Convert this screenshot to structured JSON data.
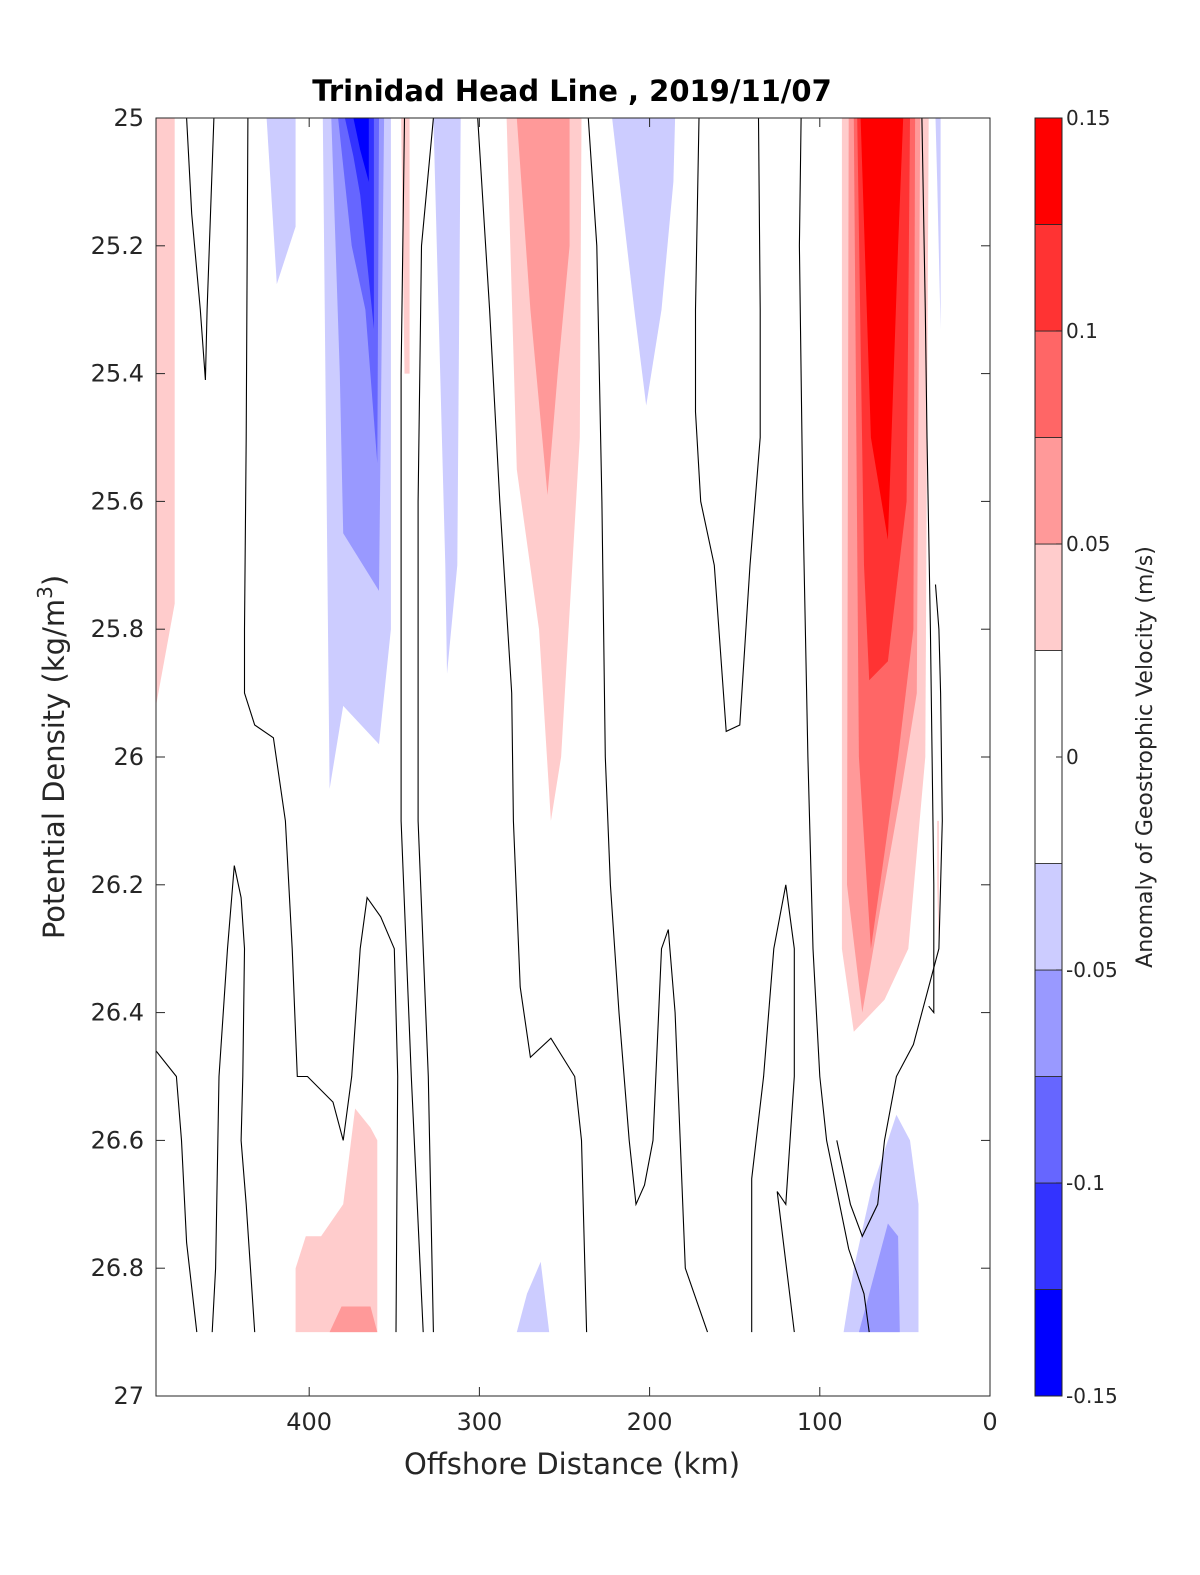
{
  "chart_data": {
    "type": "heatmap",
    "title": "Trinidad Head Line , 2019/11/07",
    "xlabel": "Offshore Distance (km)",
    "ylabel_main": "Potential Density (kg/m",
    "ylabel_sup": "3",
    "ylabel_close": ")",
    "xlim": [
      490,
      0
    ],
    "ylim": [
      25,
      27
    ],
    "y_reversed": true,
    "x_ticks": [
      400,
      300,
      200,
      100,
      0
    ],
    "x_tick_labels": [
      "400",
      "300",
      "200",
      "100",
      "0"
    ],
    "y_ticks": [
      25,
      25.2,
      25.4,
      25.6,
      25.8,
      26,
      26.2,
      26.4,
      26.6,
      26.8,
      27
    ],
    "y_tick_labels": [
      "25",
      "25.2",
      "25.4",
      "25.6",
      "25.8",
      "26",
      "26.2",
      "26.4",
      "26.6",
      "26.8",
      "27"
    ],
    "colorbar": {
      "label": "Anomaly of Geostrophic Velocity (m/s)",
      "limits": [
        -0.15,
        0.15
      ],
      "ticks": [
        0.15,
        0.1,
        0.05,
        0,
        -0.05,
        -0.1,
        -0.15
      ],
      "tick_labels": [
        "0.15",
        "0.1",
        "0.05",
        "0",
        "-0.05",
        "-0.1",
        "-0.15"
      ],
      "levels": [
        -0.15,
        -0.125,
        -0.1,
        -0.075,
        -0.05,
        -0.025,
        0.025,
        0.05,
        0.075,
        0.1,
        0.125,
        0.15
      ],
      "colors": [
        "#0000ff",
        "#3333ff",
        "#6666ff",
        "#9999ff",
        "#ccccff",
        "#ffffff",
        "#ffcccc",
        "#ff9999",
        "#ff6666",
        "#ff3333",
        "#ff0000"
      ]
    },
    "filled_regions": [
      {
        "color": "#ffcccc",
        "points": [
          [
            490,
            25
          ],
          [
            479,
            25
          ],
          [
            479,
            25.76
          ],
          [
            490,
            25.92
          ]
        ]
      },
      {
        "color": "#ccccff",
        "points": [
          [
            425,
            25
          ],
          [
            408,
            25
          ],
          [
            408,
            25.17
          ],
          [
            419,
            25.26
          ]
        ]
      },
      {
        "color": "#ccccff",
        "points": [
          [
            392,
            25
          ],
          [
            352,
            25
          ],
          [
            352,
            25.8
          ],
          [
            359,
            25.98
          ],
          [
            380,
            25.92
          ],
          [
            388,
            26.05
          ]
        ]
      },
      {
        "color": "#9999ff",
        "points": [
          [
            387,
            25
          ],
          [
            356,
            25
          ],
          [
            359,
            25.74
          ],
          [
            380,
            25.65
          ],
          [
            382,
            25.4
          ]
        ]
      },
      {
        "color": "#6666ff",
        "points": [
          [
            383,
            25
          ],
          [
            359,
            25
          ],
          [
            360,
            25.54
          ],
          [
            367,
            25.3
          ],
          [
            375,
            25.2
          ]
        ]
      },
      {
        "color": "#3333ff",
        "points": [
          [
            379,
            25
          ],
          [
            362,
            25
          ],
          [
            362,
            25.33
          ],
          [
            370,
            25.12
          ],
          [
            374,
            25.06
          ]
        ]
      },
      {
        "color": "#0000ff",
        "points": [
          [
            374,
            25
          ],
          [
            365,
            25
          ],
          [
            365,
            25.1
          ],
          [
            370,
            25.05
          ]
        ]
      },
      {
        "color": "#ffcccc",
        "points": [
          [
            346,
            25
          ],
          [
            341,
            25
          ],
          [
            341,
            25.4
          ],
          [
            344,
            25.4
          ]
        ]
      },
      {
        "color": "#ccccff",
        "points": [
          [
            327,
            25
          ],
          [
            311,
            25
          ],
          [
            313,
            25.7
          ],
          [
            319,
            25.87
          ],
          [
            320,
            25.7
          ]
        ]
      },
      {
        "color": "#ffcccc",
        "points": [
          [
            284,
            25
          ],
          [
            240,
            25
          ],
          [
            241,
            25.5
          ],
          [
            252,
            26.0
          ],
          [
            258,
            26.1
          ],
          [
            265,
            25.8
          ],
          [
            278,
            25.55
          ]
        ]
      },
      {
        "color": "#ff9999",
        "points": [
          [
            278,
            25
          ],
          [
            247,
            25
          ],
          [
            247,
            25.2
          ],
          [
            254,
            25.4
          ],
          [
            260,
            25.59
          ],
          [
            270,
            25.3
          ]
        ]
      },
      {
        "color": "#ccccff",
        "points": [
          [
            222,
            25
          ],
          [
            185,
            25
          ],
          [
            186,
            25.1
          ],
          [
            193,
            25.3
          ],
          [
            202,
            25.45
          ],
          [
            209,
            25.3
          ]
        ]
      },
      {
        "color": "#ffcccc",
        "points": [
          [
            87,
            25
          ],
          [
            36,
            25
          ],
          [
            38,
            26.0
          ],
          [
            48,
            26.3
          ],
          [
            62,
            26.38
          ],
          [
            80,
            26.43
          ],
          [
            87,
            26.3
          ]
        ]
      },
      {
        "color": "#ff9999",
        "points": [
          [
            83,
            25
          ],
          [
            41,
            25
          ],
          [
            43,
            25.9
          ],
          [
            52,
            26.05
          ],
          [
            62,
            26.2
          ],
          [
            75,
            26.4
          ],
          [
            84,
            26.2
          ]
        ]
      },
      {
        "color": "#ff6666",
        "points": [
          [
            80,
            25
          ],
          [
            44,
            25
          ],
          [
            45,
            25.8
          ],
          [
            54,
            26.0
          ],
          [
            70,
            26.3
          ],
          [
            77,
            26.0
          ]
        ]
      },
      {
        "color": "#ff3333",
        "points": [
          [
            78,
            25
          ],
          [
            47,
            25
          ],
          [
            49,
            25.6
          ],
          [
            60,
            25.85
          ],
          [
            71,
            25.88
          ],
          [
            74,
            25.7
          ]
        ]
      },
      {
        "color": "#ff0000",
        "points": [
          [
            76,
            25
          ],
          [
            51,
            25
          ],
          [
            54,
            25.2
          ],
          [
            60,
            25.66
          ],
          [
            70,
            25.5
          ]
        ]
      },
      {
        "color": "#ccccff",
        "points": [
          [
            32,
            25
          ],
          [
            29,
            25
          ],
          [
            29,
            25.33
          ],
          [
            31,
            25.1
          ]
        ]
      },
      {
        "color": "#ffcccc",
        "points": [
          [
            31,
            26.1
          ],
          [
            30,
            26.1
          ],
          [
            30,
            26.31
          ],
          [
            31,
            26.2
          ]
        ]
      },
      {
        "color": "#ffcccc",
        "points": [
          [
            408,
            26.9
          ],
          [
            360,
            26.9
          ],
          [
            360,
            26.6
          ],
          [
            364,
            26.58
          ],
          [
            373,
            26.55
          ],
          [
            380,
            26.7
          ],
          [
            393,
            26.75
          ],
          [
            402,
            26.75
          ],
          [
            408,
            26.8
          ]
        ]
      },
      {
        "color": "#ff9999",
        "points": [
          [
            388,
            26.9
          ],
          [
            360,
            26.9
          ],
          [
            364,
            26.86
          ],
          [
            374,
            26.86
          ],
          [
            381,
            26.86
          ]
        ]
      },
      {
        "color": "#ccccff",
        "points": [
          [
            278,
            26.9
          ],
          [
            259,
            26.9
          ],
          [
            264,
            26.79
          ],
          [
            272,
            26.84
          ]
        ]
      },
      {
        "color": "#ccccff",
        "points": [
          [
            86,
            26.9
          ],
          [
            42,
            26.9
          ],
          [
            42,
            26.7
          ],
          [
            47,
            26.6
          ],
          [
            55,
            26.56
          ],
          [
            70,
            26.68
          ],
          [
            80,
            26.8
          ]
        ]
      },
      {
        "color": "#9999ff",
        "points": [
          [
            77,
            26.9
          ],
          [
            53,
            26.9
          ],
          [
            54,
            26.75
          ],
          [
            60,
            26.73
          ],
          [
            70,
            26.83
          ]
        ]
      }
    ],
    "contour_lines": [
      [
        [
          472,
          25
        ],
        [
          469,
          25.15
        ],
        [
          464,
          25.3
        ],
        [
          461,
          25.41
        ],
        [
          460,
          25.3
        ],
        [
          458,
          25.15
        ],
        [
          456,
          25
        ]
      ],
      [
        [
          436,
          25
        ],
        [
          437,
          25.5
        ],
        [
          438,
          25.8
        ],
        [
          438,
          25.9
        ],
        [
          432,
          25.95
        ],
        [
          421,
          25.97
        ],
        [
          414,
          26.1
        ],
        [
          410,
          26.3
        ],
        [
          407,
          26.5
        ],
        [
          401,
          26.5
        ],
        [
          386,
          26.54
        ],
        [
          380,
          26.6
        ],
        [
          375,
          26.5
        ],
        [
          370,
          26.3
        ],
        [
          366,
          26.22
        ],
        [
          358,
          26.25
        ],
        [
          350,
          26.3
        ],
        [
          348,
          26.5
        ],
        [
          349,
          26.9
        ]
      ],
      [
        [
          344,
          25
        ],
        [
          346,
          25.4
        ],
        [
          346,
          25.8
        ],
        [
          346,
          26.1
        ],
        [
          340,
          26.5
        ],
        [
          333,
          26.9
        ]
      ],
      [
        [
          327,
          25
        ],
        [
          334,
          25.2
        ],
        [
          336,
          25.6
        ],
        [
          336,
          26.1
        ],
        [
          330,
          26.5
        ],
        [
          327,
          26.9
        ]
      ],
      [
        [
          301,
          25
        ],
        [
          294,
          25.3
        ],
        [
          288,
          25.6
        ],
        [
          281,
          25.9
        ],
        [
          280,
          26.1
        ],
        [
          276,
          26.36
        ],
        [
          270,
          26.47
        ],
        [
          258,
          26.44
        ],
        [
          244,
          26.5
        ],
        [
          240,
          26.6
        ],
        [
          237,
          26.9
        ]
      ],
      [
        [
          236,
          25
        ],
        [
          231,
          25.2
        ],
        [
          228,
          25.6
        ],
        [
          226,
          26.0
        ],
        [
          223,
          26.2
        ],
        [
          218,
          26.4
        ],
        [
          212,
          26.6
        ],
        [
          208,
          26.7
        ],
        [
          203,
          26.67
        ],
        [
          198,
          26.6
        ],
        [
          193,
          26.3
        ],
        [
          189,
          26.27
        ],
        [
          185,
          26.4
        ],
        [
          179,
          26.8
        ],
        [
          166,
          26.9
        ]
      ],
      [
        [
          136,
          25
        ],
        [
          135,
          25.3
        ],
        [
          135,
          25.5
        ],
        [
          141,
          25.7
        ],
        [
          147,
          25.95
        ],
        [
          155,
          25.96
        ],
        [
          162,
          25.7
        ],
        [
          170,
          25.6
        ],
        [
          173,
          25.46
        ],
        [
          173,
          25.3
        ],
        [
          171,
          25
        ]
      ],
      [
        [
          111,
          25
        ],
        [
          112,
          25.2
        ],
        [
          110,
          25.6
        ],
        [
          107,
          26.0
        ],
        [
          104,
          26.3
        ],
        [
          100,
          26.5
        ],
        [
          96,
          26.6
        ],
        [
          83,
          26.77
        ],
        [
          74,
          26.84
        ],
        [
          71,
          26.9
        ]
      ],
      [
        [
          140,
          26.9
        ],
        [
          140,
          26.7
        ],
        [
          140,
          26.66
        ],
        [
          133,
          26.5
        ],
        [
          127,
          26.3
        ],
        [
          120,
          26.2
        ],
        [
          115,
          26.3
        ],
        [
          115,
          26.5
        ],
        [
          120,
          26.7
        ],
        [
          125,
          26.68
        ],
        [
          115,
          26.9
        ]
      ],
      [
        [
          40,
          25
        ],
        [
          38,
          25.3
        ],
        [
          37,
          25.5
        ],
        [
          35,
          25.8
        ],
        [
          34,
          26.0
        ],
        [
          33,
          26.2
        ],
        [
          33,
          26.4
        ],
        [
          36,
          26.39
        ]
      ],
      [
        [
          32,
          25.73
        ],
        [
          30,
          25.8
        ],
        [
          29,
          25.9
        ],
        [
          28,
          26.1
        ],
        [
          30,
          26.3
        ],
        [
          45,
          26.45
        ],
        [
          55,
          26.5
        ],
        [
          62,
          26.6
        ],
        [
          66,
          26.7
        ],
        [
          75,
          26.75
        ],
        [
          82,
          26.7
        ],
        [
          90,
          26.6
        ]
      ],
      [
        [
          490,
          26.46
        ],
        [
          478,
          26.5
        ],
        [
          475,
          26.6
        ],
        [
          472,
          26.76
        ],
        [
          466,
          26.9
        ]
      ],
      [
        [
          457,
          26.9
        ],
        [
          455,
          26.8
        ],
        [
          453,
          26.5
        ],
        [
          448,
          26.3
        ],
        [
          444,
          26.17
        ],
        [
          440,
          26.22
        ],
        [
          438,
          26.3
        ],
        [
          439,
          26.5
        ],
        [
          440,
          26.6
        ],
        [
          437,
          26.7
        ],
        [
          432,
          26.9
        ]
      ]
    ]
  }
}
